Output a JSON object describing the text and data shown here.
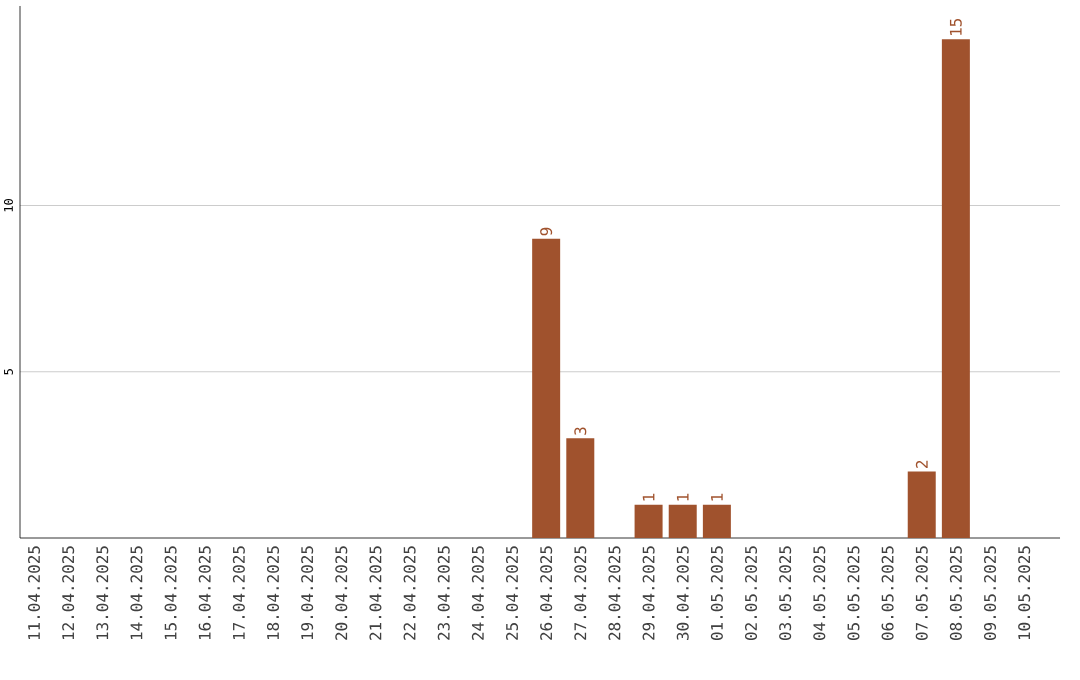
{
  "chart_data": {
    "type": "bar",
    "categories": [
      "11.04.2025",
      "12.04.2025",
      "13.04.2025",
      "14.04.2025",
      "15.04.2025",
      "16.04.2025",
      "17.04.2025",
      "18.04.2025",
      "19.04.2025",
      "20.04.2025",
      "21.04.2025",
      "22.04.2025",
      "23.04.2025",
      "24.04.2025",
      "25.04.2025",
      "26.04.2025",
      "27.04.2025",
      "28.04.2025",
      "29.04.2025",
      "30.04.2025",
      "01.05.2025",
      "02.05.2025",
      "03.05.2025",
      "04.05.2025",
      "05.05.2025",
      "06.05.2025",
      "07.05.2025",
      "08.05.2025",
      "09.05.2025",
      "10.05.2025"
    ],
    "values": [
      0,
      0,
      0,
      0,
      0,
      0,
      0,
      0,
      0,
      0,
      0,
      0,
      0,
      0,
      0,
      9,
      3,
      0,
      1,
      1,
      1,
      0,
      0,
      0,
      0,
      0,
      2,
      15,
      0,
      0
    ],
    "value_labels": [
      null,
      null,
      null,
      null,
      null,
      null,
      null,
      null,
      null,
      null,
      null,
      null,
      null,
      null,
      null,
      "9",
      "3",
      null,
      "1",
      "1",
      "1",
      null,
      null,
      null,
      null,
      null,
      "2",
      "15",
      null,
      null
    ],
    "color": "#a0522d",
    "ylim": [
      0,
      16
    ],
    "yticks": [
      5,
      10
    ],
    "grid": "y"
  }
}
